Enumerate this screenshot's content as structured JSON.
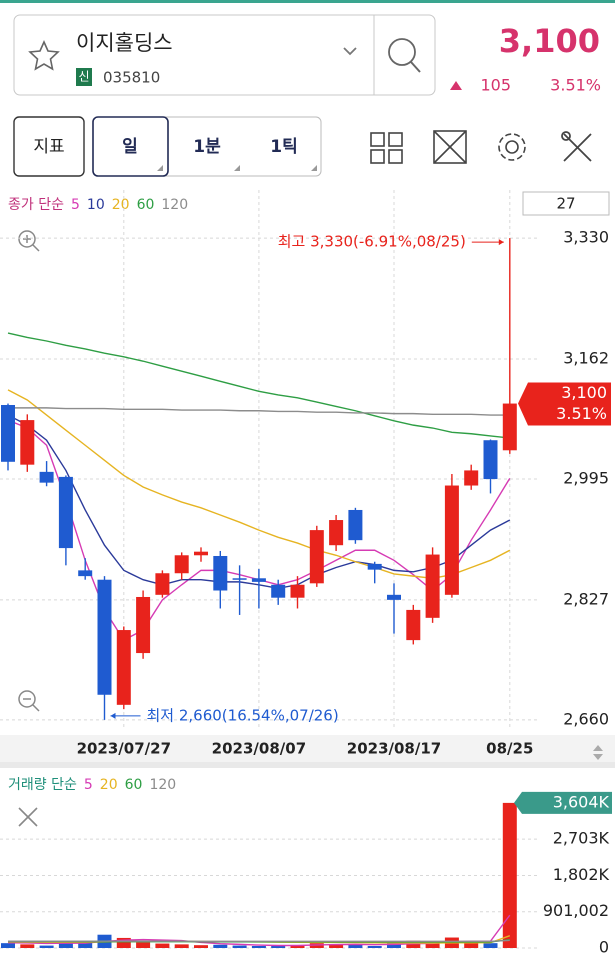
{
  "header": {
    "name": "이지홀딩스",
    "badge": "신",
    "code": "035810",
    "price": "3,100",
    "change": "105",
    "change_pct": "3.51%"
  },
  "toolbar": {
    "indicator": "지표",
    "periods": [
      "일",
      "1분",
      "1틱"
    ]
  },
  "chart_data": [
    {
      "type": "candlestick",
      "visible_count": 27,
      "legend_title": "종가 단순",
      "categories": [
        null,
        null,
        null,
        null,
        null,
        null,
        "2023/07/27",
        null,
        null,
        null,
        null,
        null,
        null,
        "2023/08/07",
        null,
        null,
        null,
        null,
        null,
        null,
        "2023/08/17",
        null,
        null,
        null,
        null,
        null,
        "08/25"
      ],
      "open": [
        3098,
        3015,
        3005,
        2998,
        2868,
        2855,
        2681,
        2753,
        2834,
        2864,
        2889,
        2888,
        2857,
        2857,
        2848,
        2830,
        2850,
        2903,
        2952,
        2877,
        2834,
        2771,
        2802,
        2834,
        2986,
        3049,
        3035
      ],
      "high": [
        3100,
        3085,
        3020,
        3000,
        2885,
        2860,
        2790,
        2840,
        2868,
        2893,
        2900,
        2895,
        2875,
        2870,
        2855,
        2860,
        2930,
        2945,
        2955,
        2880,
        2850,
        2820,
        2900,
        3002,
        3015,
        3050,
        3330
      ],
      "low": [
        3007,
        3005,
        2985,
        2875,
        2855,
        2660,
        2675,
        2745,
        2830,
        2855,
        2880,
        2815,
        2806,
        2815,
        2820,
        2815,
        2845,
        2895,
        2905,
        2850,
        2780,
        2765,
        2795,
        2830,
        2980,
        2975,
        3030
      ],
      "close": [
        3019,
        3077,
        2990,
        2899,
        2860,
        2695,
        2785,
        2831,
        2864,
        2889,
        2894,
        2840,
        2855,
        2852,
        2830,
        2848,
        2924,
        2938,
        2910,
        2869,
        2827,
        2813,
        2890,
        2986,
        3007,
        2995,
        3100
      ],
      "up_color": "#e8231c",
      "down_color": "#1f5bd0",
      "ma": [
        {
          "name": "5",
          "color": "#d63bb4",
          "values": [
            3077,
            3066,
            3042,
            2966,
            2882,
            2813,
            2771,
            2785,
            2827,
            2848,
            2868,
            2868,
            2862,
            2855,
            2848,
            2855,
            2868,
            2882,
            2896,
            2896,
            2882,
            2862,
            2840,
            2862,
            2910,
            2952,
            2996
          ]
        },
        {
          "name": "10",
          "color": "#2b3a9a",
          "values": [
            3084,
            3070,
            3049,
            3007,
            2952,
            2903,
            2868,
            2855,
            2848,
            2855,
            2855,
            2852,
            2852,
            2848,
            2843,
            2848,
            2862,
            2872,
            2880,
            2876,
            2868,
            2866,
            2872,
            2882,
            2903,
            2924,
            2938
          ]
        },
        {
          "name": "20",
          "color": "#e6b422",
          "values": [
            3119,
            3105,
            3084,
            3063,
            3042,
            3021,
            3000,
            2984,
            2973,
            2963,
            2955,
            2945,
            2935,
            2924,
            2914,
            2906,
            2896,
            2889,
            2880,
            2872,
            2863,
            2860,
            2857,
            2862,
            2872,
            2882,
            2896
          ]
        },
        {
          "name": "60",
          "color": "#2e9e44",
          "values": [
            3198,
            3192,
            3187,
            3181,
            3176,
            3170,
            3165,
            3159,
            3152,
            3145,
            3138,
            3131,
            3124,
            3117,
            3112,
            3108,
            3102,
            3096,
            3090,
            3083,
            3076,
            3070,
            3066,
            3060,
            3058,
            3055,
            3052
          ]
        },
        {
          "name": "120",
          "color": "#8c8c8c",
          "values": [
            3094,
            3094,
            3094,
            3093,
            3093,
            3093,
            3092,
            3092,
            3092,
            3091,
            3091,
            3091,
            3090,
            3090,
            3089,
            3089,
            3088,
            3088,
            3087,
            3087,
            3086,
            3086,
            3085,
            3085,
            3085,
            3084,
            3084
          ]
        }
      ],
      "ylim": [
        2646,
        3397
      ],
      "yticks": [
        {
          "value": 3330,
          "label": "3,330"
        },
        {
          "value": 3162,
          "label": "3,162"
        },
        {
          "value": 2995,
          "label": "2,995"
        },
        {
          "value": 2827,
          "label": "2,827"
        },
        {
          "value": 2660,
          "label": "2,660"
        }
      ],
      "grid": true,
      "high_annotation": "최고 3,330(-6.91%,08/25)",
      "low_annotation": "최저 2,660(16.54%,07/26)",
      "price_tag": {
        "value": 3100,
        "label": "3,100",
        "change": "3.51%",
        "color": "#e8231c"
      }
    },
    {
      "type": "bar",
      "legend_title": "거래량 단순",
      "values": [
        120000,
        90000,
        60000,
        180000,
        150000,
        330000,
        250000,
        140000,
        110000,
        90000,
        70000,
        80000,
        60000,
        50000,
        60000,
        70000,
        120000,
        90000,
        80000,
        50000,
        110000,
        180000,
        150000,
        260000,
        140000,
        120000,
        3604000
      ],
      "ma": [
        {
          "name": "5",
          "color": "#d63bb4",
          "values": [
            130000,
            125000,
            115000,
            120000,
            120000,
            166000,
            194000,
            210000,
            196000,
            184000,
            138000,
            108000,
            90000,
            72000,
            62000,
            62000,
            76000,
            86000,
            90000,
            82000,
            90000,
            106000,
            114000,
            154000,
            168000,
            170000,
            815000
          ]
        },
        {
          "name": "20",
          "color": "#e6b422",
          "values": [
            150000,
            148000,
            146000,
            145000,
            146000,
            152000,
            160000,
            165000,
            166000,
            165000,
            162000,
            160000,
            156000,
            150000,
            146000,
            142000,
            140000,
            138000,
            135000,
            130000,
            128000,
            126000,
            124000,
            128000,
            130000,
            132000,
            305000
          ]
        },
        {
          "name": "60",
          "color": "#2e9e44",
          "values": [
            160000,
            160000,
            159000,
            159000,
            158000,
            158000,
            158000,
            157000,
            157000,
            156000,
            156000,
            155000,
            155000,
            154000,
            154000,
            153000,
            153000,
            152000,
            152000,
            151000,
            151000,
            151000,
            150000,
            151000,
            151000,
            150000,
            205000
          ]
        },
        {
          "name": "120",
          "color": "#8c8c8c",
          "values": [
            170000,
            170000,
            170000,
            169000,
            169000,
            169000,
            168000,
            168000,
            168000,
            168000,
            167000,
            167000,
            167000,
            167000,
            166000,
            166000,
            166000,
            166000,
            166000,
            165000,
            165000,
            165000,
            165000,
            165000,
            165000,
            165000,
            190000
          ]
        }
      ],
      "ylim": [
        0,
        3800000
      ],
      "yticks": [
        {
          "value": 2703000,
          "label": "2,703K"
        },
        {
          "value": 1802000,
          "label": "1,802K"
        },
        {
          "value": 901002,
          "label": "901,002"
        },
        0
      ],
      "grid": true,
      "current_tag": {
        "value": 3604000,
        "label": "3,604K",
        "color": "#3a9a8a"
      }
    }
  ]
}
